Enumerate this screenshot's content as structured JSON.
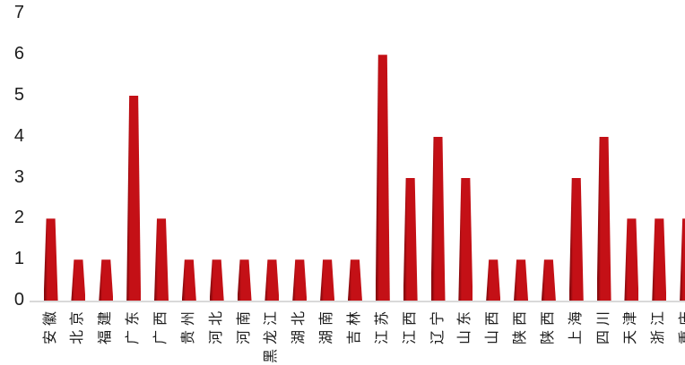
{
  "chart_data": {
    "type": "bar",
    "title": "",
    "xlabel": "",
    "ylabel": "",
    "categories": [
      "安徽",
      "北京",
      "福建",
      "广东",
      "广西",
      "贵州",
      "河北",
      "河南",
      "黑龙江",
      "湖北",
      "湖南",
      "吉林",
      "江苏",
      "江西",
      "辽宁",
      "山东",
      "山西",
      "陕西",
      "陕西",
      "上海",
      "四川",
      "天津",
      "浙江",
      "重庆"
    ],
    "values": [
      2,
      1,
      1,
      5,
      2,
      1,
      1,
      1,
      1,
      1,
      1,
      1,
      6,
      3,
      4,
      3,
      1,
      1,
      1,
      3,
      4,
      2,
      2,
      2
    ],
    "ylim": [
      0,
      7
    ],
    "yticks": [
      0,
      1,
      2,
      3,
      4,
      5,
      6,
      7
    ],
    "grid": false,
    "legend": "none",
    "colors": {
      "bar": "#c41016",
      "bar_edge": "#85090d",
      "axis_line": "#d9d9d9",
      "text": "#1c1c1c",
      "background": "#ffffff"
    }
  }
}
